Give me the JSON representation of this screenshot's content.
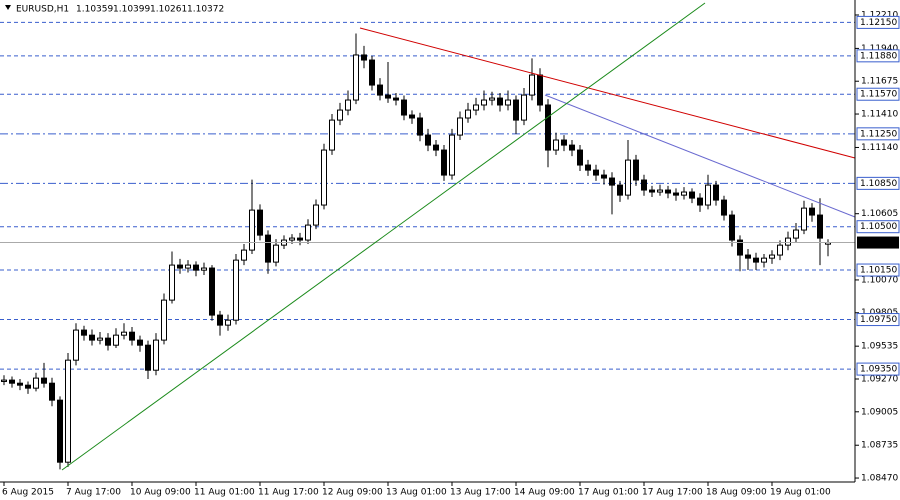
{
  "chart_data": {
    "type": "candlestick",
    "symbol": "EURUSD,H1",
    "ylim": [
      1.08438,
      1.12331
    ],
    "yticks": [
      {
        "value": 1.1221,
        "label": "1.12210"
      },
      {
        "value": 1.1194,
        "label": "1.11940"
      },
      1.11675,
      {
        "value": 1.1141,
        "label": "1.11410"
      },
      {
        "value": 1.1114,
        "label": "1.11140"
      },
      1.10605,
      {
        "value": 1.1007,
        "label": "1.10070"
      },
      1.09805,
      1.09535,
      {
        "value": 1.0927,
        "label": "1.09270"
      },
      1.09005,
      1.08735,
      {
        "value": 1.0847,
        "label": "1.08470"
      }
    ],
    "levels": [
      {
        "value": 1.1215,
        "label": "1.12150",
        "style": "dash"
      },
      {
        "value": 1.1188,
        "label": "1.11880",
        "style": "dash"
      },
      {
        "value": 1.1157,
        "label": "1.11570",
        "style": "dash"
      },
      {
        "value": 1.1125,
        "label": "1.11250",
        "style": "dashdot"
      },
      {
        "value": 1.1085,
        "label": "1.10850",
        "style": "dashdot"
      },
      {
        "value": 1.105,
        "label": "1.10500",
        "style": "dash"
      },
      {
        "value": 1.1015,
        "label": "1.10150",
        "style": "dash"
      },
      {
        "value": 1.0975,
        "label": "1.09750",
        "style": "dash"
      },
      {
        "value": 1.0935,
        "label": "1.09350",
        "style": "dash"
      }
    ],
    "level_color": "#3a5fcd",
    "up_color": "#ffffff",
    "down_color": "#000000",
    "categories": [
      "6 Aug 2015",
      null,
      null,
      null,
      null,
      null,
      null,
      null,
      "7 Aug 17:00",
      null,
      null,
      null,
      null,
      null,
      null,
      null,
      "10 Aug 09:00",
      null,
      null,
      null,
      null,
      null,
      null,
      null,
      "11 Aug 01:00",
      null,
      null,
      null,
      null,
      null,
      null,
      null,
      "11 Aug 17:00",
      null,
      null,
      null,
      null,
      null,
      null,
      null,
      "12 Aug 09:00",
      null,
      null,
      null,
      null,
      null,
      null,
      null,
      "13 Aug 01:00",
      null,
      null,
      null,
      null,
      null,
      null,
      null,
      "13 Aug 17:00",
      null,
      null,
      null,
      null,
      null,
      null,
      null,
      "14 Aug 09:00",
      null,
      null,
      null,
      null,
      null,
      null,
      null,
      "17 Aug 01:00",
      null,
      null,
      null,
      null,
      null,
      null,
      null,
      "17 Aug 17:00",
      null,
      null,
      null,
      null,
      null,
      null,
      null,
      "18 Aug 09:00",
      null,
      null,
      null,
      null,
      null,
      null,
      null,
      "19 Aug 01:00",
      null,
      null,
      null,
      null,
      null,
      null,
      null
    ],
    "candles": [
      [
        1.0925,
        1.093,
        1.0922,
        1.09261
      ],
      [
        1.09261,
        1.0929,
        1.092,
        1.09236
      ],
      [
        1.09236,
        1.0927,
        1.0918,
        1.0922
      ],
      [
        1.0922,
        1.0925,
        1.0915,
        1.09196
      ],
      [
        1.09196,
        1.0932,
        1.0917,
        1.09277
      ],
      [
        1.09277,
        1.094,
        1.092,
        1.09236
      ],
      [
        1.09236,
        1.0928,
        1.0905,
        1.09099
      ],
      [
        1.09099,
        1.0913,
        1.0854,
        1.08598
      ],
      [
        1.08598,
        1.0948,
        1.0856,
        1.09422
      ],
      [
        1.09422,
        1.0972,
        1.0938,
        1.09665
      ],
      [
        1.09665,
        1.097,
        1.0958,
        1.09624
      ],
      [
        1.09624,
        1.0967,
        1.0954,
        1.09584
      ],
      [
        1.09584,
        1.0965,
        1.0955,
        1.096
      ],
      [
        1.096,
        1.0964,
        1.095,
        1.09543
      ],
      [
        1.09543,
        1.0968,
        1.0952,
        1.09624
      ],
      [
        1.09624,
        1.0972,
        1.0959,
        1.09648
      ],
      [
        1.09648,
        1.0969,
        1.0954,
        1.09584
      ],
      [
        1.09584,
        1.0962,
        1.0949,
        1.09543
      ],
      [
        1.09543,
        1.0958,
        1.0927,
        1.09341
      ],
      [
        1.09341,
        1.0964,
        1.093,
        1.09584
      ],
      [
        1.09584,
        1.0996,
        1.0955,
        1.09907
      ],
      [
        1.09907,
        1.103,
        1.0988,
        1.1019
      ],
      [
        1.1019,
        1.1024,
        1.1012,
        1.10166
      ],
      [
        1.10166,
        1.1023,
        1.1013,
        1.1019
      ],
      [
        1.1019,
        1.1022,
        1.101,
        1.10149
      ],
      [
        1.10149,
        1.1021,
        1.1011,
        1.10166
      ],
      [
        1.10166,
        1.1019,
        1.0974,
        1.09786
      ],
      [
        1.09786,
        1.0982,
        1.0962,
        1.09705
      ],
      [
        1.09705,
        1.0979,
        1.0966,
        1.09745
      ],
      [
        1.09745,
        1.1028,
        1.0971,
        1.1023
      ],
      [
        1.1023,
        1.1036,
        1.1019,
        1.10311
      ],
      [
        1.10311,
        1.1088,
        1.1028,
        1.10634
      ],
      [
        1.10634,
        1.1068,
        1.1039,
        1.10432
      ],
      [
        1.10432,
        1.1047,
        1.1012,
        1.10214
      ],
      [
        1.10214,
        1.104,
        1.1018,
        1.10351
      ],
      [
        1.10351,
        1.1043,
        1.1032,
        1.10392
      ],
      [
        1.10392,
        1.1044,
        1.1036,
        1.10408
      ],
      [
        1.10408,
        1.1045,
        1.1035,
        1.10392
      ],
      [
        1.10392,
        1.1056,
        1.1036,
        1.10513
      ],
      [
        1.10513,
        1.1072,
        1.1048,
        1.10675
      ],
      [
        1.10675,
        1.1117,
        1.1064,
        1.11119
      ],
      [
        1.11119,
        1.1141,
        1.1108,
        1.11361
      ],
      [
        1.11361,
        1.115,
        1.1132,
        1.11442
      ],
      [
        1.11442,
        1.116,
        1.114,
        1.11523
      ],
      [
        1.11523,
        1.1206,
        1.1149,
        1.11887
      ],
      [
        1.11887,
        1.1196,
        1.1178,
        1.11846
      ],
      [
        1.11846,
        1.1188,
        1.116,
        1.11644
      ],
      [
        1.11644,
        1.117,
        1.1152,
        1.11563
      ],
      [
        1.11563,
        1.1183,
        1.115,
        1.11539
      ],
      [
        1.11539,
        1.1158,
        1.1148,
        1.11523
      ],
      [
        1.11523,
        1.1156,
        1.1136,
        1.11402
      ],
      [
        1.11402,
        1.1144,
        1.1133,
        1.11378
      ],
      [
        1.11378,
        1.1142,
        1.1119,
        1.1124
      ],
      [
        1.1124,
        1.1129,
        1.1111,
        1.11159
      ],
      [
        1.11159,
        1.112,
        1.1107,
        1.11119
      ],
      [
        1.11119,
        1.1116,
        1.1087,
        1.10917
      ],
      [
        1.10917,
        1.1129,
        1.1088,
        1.1124
      ],
      [
        1.1124,
        1.1143,
        1.112,
        1.11378
      ],
      [
        1.11378,
        1.115,
        1.1134,
        1.11442
      ],
      [
        1.11442,
        1.1154,
        1.114,
        1.11483
      ],
      [
        1.11483,
        1.116,
        1.1144,
        1.11523
      ],
      [
        1.11523,
        1.1159,
        1.1148,
        1.11539
      ],
      [
        1.11539,
        1.1158,
        1.1143,
        1.11483
      ],
      [
        1.11483,
        1.116,
        1.1144,
        1.11523
      ],
      [
        1.11523,
        1.1156,
        1.1125,
        1.11361
      ],
      [
        1.11361,
        1.1162,
        1.1132,
        1.11563
      ],
      [
        1.11563,
        1.1186,
        1.1152,
        1.11725
      ],
      [
        1.11725,
        1.1178,
        1.1143,
        1.11483
      ],
      [
        1.11483,
        1.1153,
        1.1098,
        1.11119
      ],
      [
        1.11119,
        1.1126,
        1.1108,
        1.112
      ],
      [
        1.112,
        1.1124,
        1.1111,
        1.11159
      ],
      [
        1.11159,
        1.112,
        1.1107,
        1.11119
      ],
      [
        1.11119,
        1.1116,
        1.1095,
        1.10998
      ],
      [
        1.10998,
        1.1104,
        1.1091,
        1.10957
      ],
      [
        1.10957,
        1.11,
        1.1087,
        1.10917
      ],
      [
        1.10917,
        1.1096,
        1.1084,
        1.10893
      ],
      [
        1.10893,
        1.1094,
        1.106,
        1.10836
      ],
      [
        1.10836,
        1.1087,
        1.107,
        1.10755
      ],
      [
        1.10755,
        1.112,
        1.1072,
        1.11038
      ],
      [
        1.11038,
        1.1108,
        1.1083,
        1.10877
      ],
      [
        1.10877,
        1.1092,
        1.1075,
        1.10796
      ],
      [
        1.10796,
        1.1083,
        1.1074,
        1.1078
      ],
      [
        1.1078,
        1.1084,
        1.1075,
        1.10796
      ],
      [
        1.10796,
        1.1083,
        1.1073,
        1.10772
      ],
      [
        1.10772,
        1.1081,
        1.1071,
        1.10755
      ],
      [
        1.10755,
        1.1082,
        1.1072,
        1.1078
      ],
      [
        1.1078,
        1.1081,
        1.1069,
        1.10731
      ],
      [
        1.10731,
        1.1077,
        1.1062,
        1.10675
      ],
      [
        1.10675,
        1.1092,
        1.1064,
        1.10836
      ],
      [
        1.10836,
        1.1087,
        1.1067,
        1.10715
      ],
      [
        1.10715,
        1.1075,
        1.1055,
        1.10594
      ],
      [
        1.10594,
        1.1063,
        1.1034,
        1.10392
      ],
      [
        1.10392,
        1.1043,
        1.1014,
        1.10271
      ],
      [
        1.10271,
        1.1032,
        1.1015,
        1.10246
      ],
      [
        1.10246,
        1.1029,
        1.1015,
        1.10214
      ],
      [
        1.10214,
        1.1028,
        1.1017,
        1.10246
      ],
      [
        1.10246,
        1.1031,
        1.102,
        1.10271
      ],
      [
        1.10271,
        1.1039,
        1.1023,
        1.10351
      ],
      [
        1.10351,
        1.1046,
        1.1031,
        1.10408
      ],
      [
        1.10408,
        1.1053,
        1.1037,
        1.10473
      ],
      [
        1.10473,
        1.1071,
        1.1044,
        1.1065
      ],
      [
        1.1065,
        1.1069,
        1.1054,
        1.10594
      ],
      [
        1.10594,
        1.1073,
        1.1019,
        1.10408
      ],
      [
        1.10359,
        1.10399,
        1.10261,
        1.10372
      ]
    ]
  }
}
